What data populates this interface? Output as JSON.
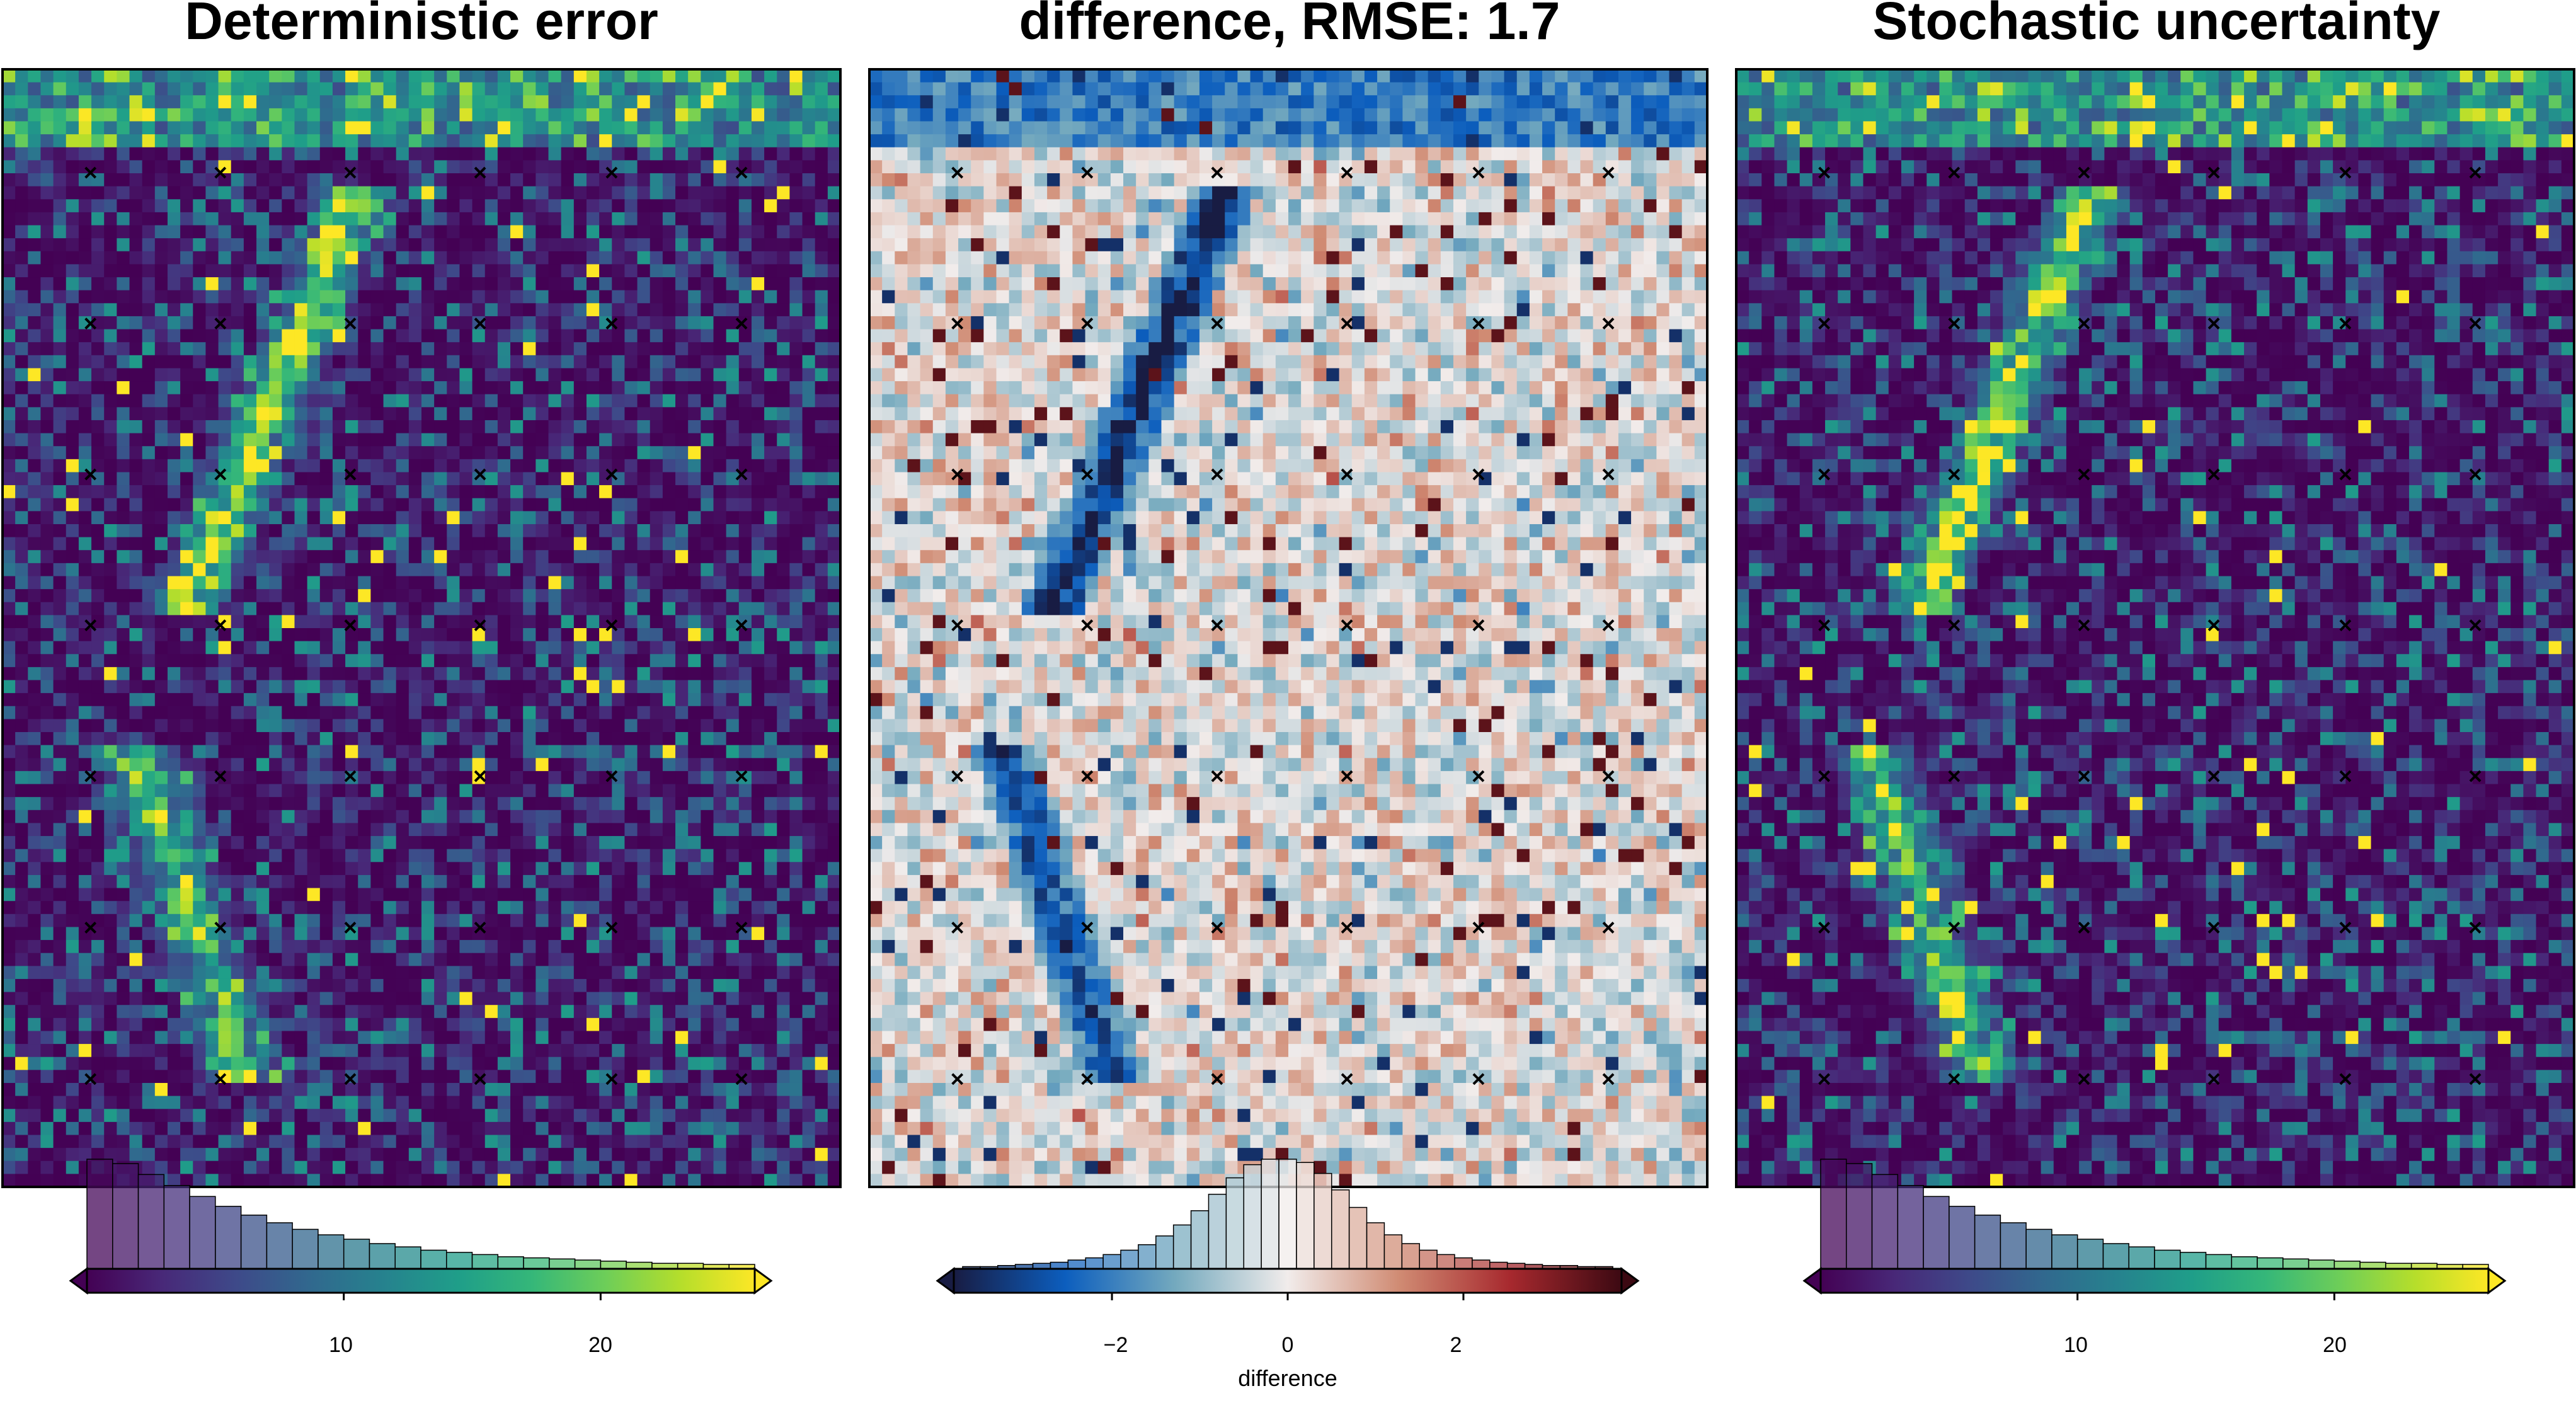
{
  "chart_data": [
    {
      "type": "heatmap",
      "title": "Deterministic error",
      "colormap": "viridis",
      "colorbar": {
        "range": [
          0,
          26
        ],
        "ticks": [
          10,
          20
        ],
        "tick_labels": [
          "10",
          "20"
        ],
        "label": "",
        "extend": "both"
      },
      "histogram": {
        "bin_edges_start": 0,
        "bin_width": 1,
        "relative_counts": [
          1.0,
          0.96,
          0.86,
          0.76,
          0.66,
          0.57,
          0.49,
          0.42,
          0.36,
          0.31,
          0.27,
          0.23,
          0.2,
          0.17,
          0.15,
          0.13,
          0.11,
          0.1,
          0.09,
          0.08,
          0.07,
          0.06,
          0.05,
          0.05,
          0.04,
          0.04
        ]
      },
      "control_point_grid": {
        "columns": 6,
        "rows": 7
      }
    },
    {
      "type": "heatmap",
      "title": "difference, RMSE: 1.7",
      "colormap": "balance (diverging)",
      "colorbar": {
        "range": [
          -3.8,
          3.8
        ],
        "ticks": [
          -2,
          0,
          2
        ],
        "tick_labels": [
          "−2",
          "0",
          "2"
        ],
        "label": "difference",
        "extend": "both"
      },
      "histogram": {
        "bin_centers": [
          -3.6,
          -3.4,
          -3.2,
          -3.0,
          -2.8,
          -2.6,
          -2.4,
          -2.2,
          -2.0,
          -1.8,
          -1.6,
          -1.4,
          -1.2,
          -1.0,
          -0.8,
          -0.6,
          -0.4,
          -0.2,
          0.0,
          0.2,
          0.4,
          0.6,
          0.8,
          1.0,
          1.2,
          1.4,
          1.6,
          1.8,
          2.0,
          2.2,
          2.4,
          2.6,
          2.8,
          3.0,
          3.2,
          3.4,
          3.6
        ],
        "relative_counts": [
          0.02,
          0.02,
          0.03,
          0.04,
          0.05,
          0.06,
          0.08,
          0.1,
          0.13,
          0.17,
          0.22,
          0.3,
          0.4,
          0.53,
          0.68,
          0.83,
          0.95,
          1.0,
          1.0,
          0.97,
          0.87,
          0.72,
          0.56,
          0.42,
          0.31,
          0.23,
          0.17,
          0.13,
          0.1,
          0.08,
          0.06,
          0.05,
          0.04,
          0.03,
          0.03,
          0.02,
          0.02
        ]
      },
      "control_point_grid": {
        "columns": 6,
        "rows": 7
      }
    },
    {
      "type": "heatmap",
      "title": "Stochastic uncertainty",
      "colormap": "viridis",
      "colorbar": {
        "range": [
          0,
          26
        ],
        "ticks": [
          10,
          20
        ],
        "tick_labels": [
          "10",
          "20"
        ],
        "label": "",
        "extend": "both"
      },
      "histogram": {
        "bin_edges_start": 0,
        "bin_width": 1,
        "relative_counts": [
          1.0,
          0.96,
          0.86,
          0.76,
          0.66,
          0.57,
          0.49,
          0.42,
          0.36,
          0.31,
          0.27,
          0.23,
          0.2,
          0.17,
          0.15,
          0.13,
          0.11,
          0.1,
          0.09,
          0.08,
          0.07,
          0.06,
          0.05,
          0.05,
          0.04,
          0.04
        ]
      },
      "control_point_grid": {
        "columns": 6,
        "rows": 7
      }
    }
  ],
  "colors": {
    "viridis": [
      "#440154",
      "#482878",
      "#3e4989",
      "#31688e",
      "#26828e",
      "#1f9e89",
      "#35b779",
      "#6ece58",
      "#b5de2b",
      "#fde725"
    ],
    "balance": [
      "#181c43",
      "#0c5ebe",
      "#75aabe",
      "#f1eceb",
      "#d08b73",
      "#a7292e",
      "#3c0912"
    ],
    "frame": "#000000",
    "marker": "#000000"
  },
  "marker_symbol": "×"
}
